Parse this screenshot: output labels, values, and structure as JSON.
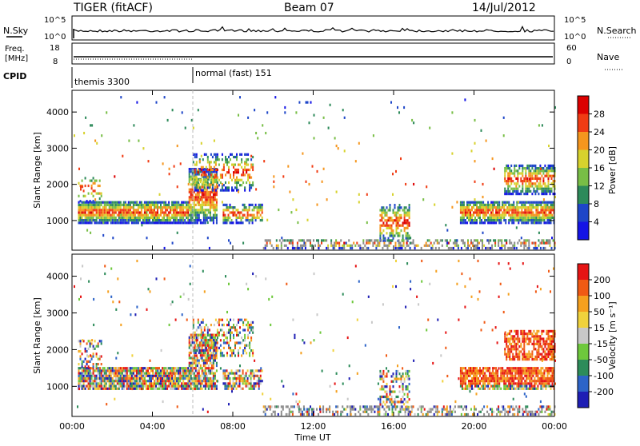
{
  "header": {
    "radar": "TIGER (fitACF)",
    "beam": "Beam 07",
    "date": "14/Jul/2012"
  },
  "panels": {
    "nsky_label": "N.Sky",
    "nsky_ticks": [
      "10^5",
      "10^0"
    ],
    "nsearch_label": "N.Search",
    "nsearch_ticks": [
      "10^5",
      "10^0"
    ],
    "freq_label": "Freq.",
    "freq_unit": "[MHz]",
    "freq_ticks": [
      "18",
      "8"
    ],
    "nave_label": "Nave",
    "nave_ticks": [
      "60",
      "0"
    ],
    "cpid_label": "CPID",
    "cpid_modes": [
      {
        "name": "themis 3300",
        "start_hour": 0
      },
      {
        "name": "normal (fast) 151",
        "start_hour": 6
      }
    ]
  },
  "chart_data": [
    {
      "type": "heatmap",
      "name": "power",
      "ylabel": "Slant Range [km]",
      "xlabel": "Time UT",
      "x_ticks": [
        "00:00",
        "04:00",
        "08:00",
        "12:00",
        "16:00",
        "20:00",
        "00:00"
      ],
      "x_range_hours": [
        0,
        24
      ],
      "ylim": [
        180,
        4600
      ],
      "y_ticks": [
        1000,
        2000,
        3000,
        4000
      ],
      "colorbar_label": "Power [dB]",
      "colorbar_ticks": [
        "28",
        "24",
        "20",
        "16",
        "12",
        "8",
        "4"
      ],
      "colorbar_range": [
        0,
        30
      ],
      "colors": [
        "#1414e6",
        "#1e46c8",
        "#2d8a5a",
        "#78be46",
        "#d7d22d",
        "#f5961e",
        "#f03c14",
        "#dc0000"
      ]
    },
    {
      "type": "heatmap",
      "name": "velocity",
      "ylabel": "Slant Range [km]",
      "xlabel": "Time UT",
      "x_ticks": [
        "00:00",
        "04:00",
        "08:00",
        "12:00",
        "16:00",
        "20:00",
        "00:00"
      ],
      "x_range_hours": [
        0,
        24
      ],
      "ylim": [
        180,
        4600
      ],
      "y_ticks": [
        1000,
        2000,
        3000,
        4000
      ],
      "colorbar_label": "Velocity [m s⁻¹]",
      "colorbar_ticks": [
        "200",
        "100",
        "50",
        "15",
        "-15",
        "-50",
        "-100",
        "-200"
      ],
      "colors": [
        "#1e1eb4",
        "#2d64c8",
        "#2d8c5a",
        "#6ec83c",
        "#c8c8c8",
        "#f0d23c",
        "#f5a01e",
        "#f05a14",
        "#e61414"
      ]
    }
  ],
  "colors": {
    "ground_scatter": "#8c8c8c",
    "axis": "#000000"
  }
}
